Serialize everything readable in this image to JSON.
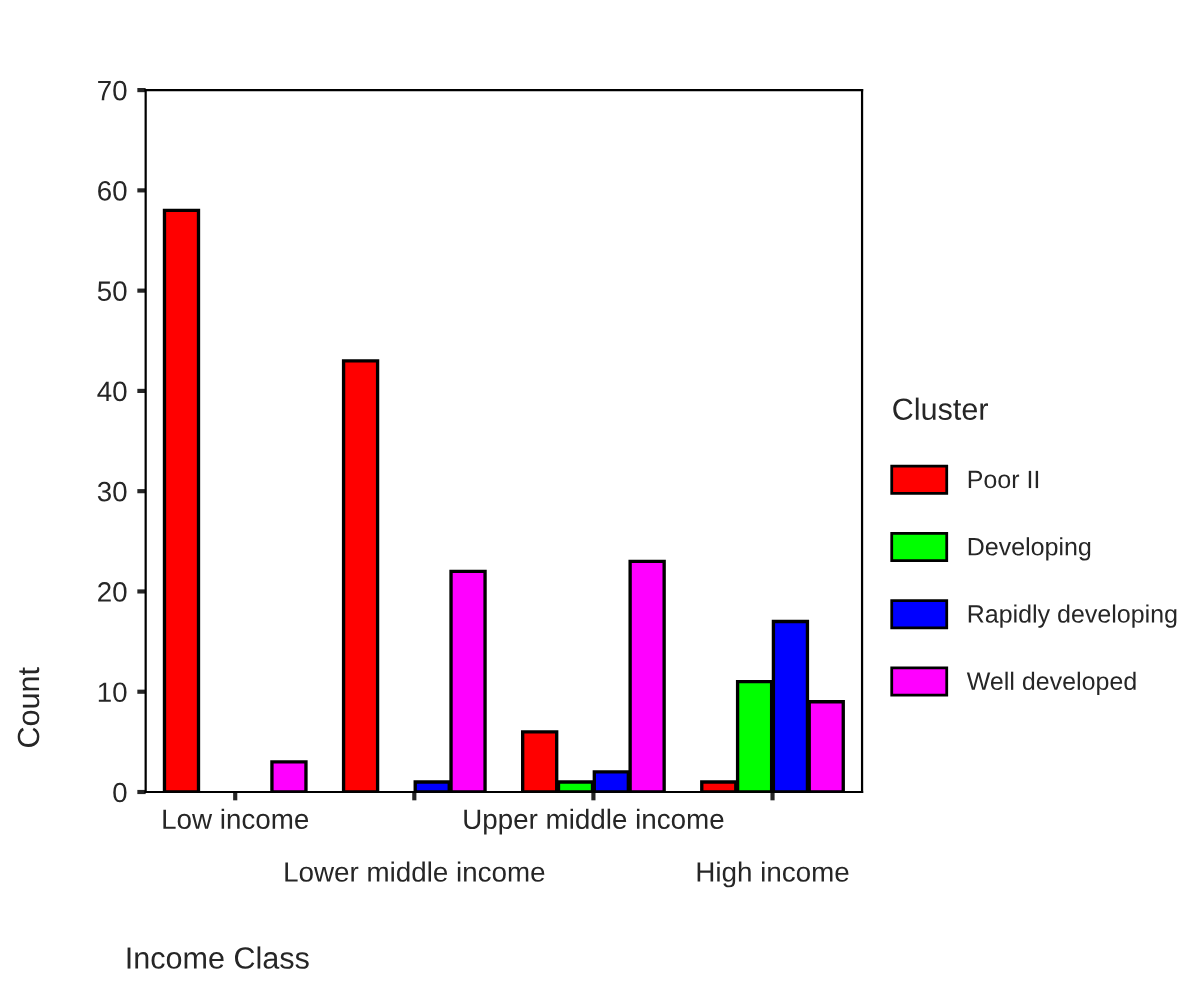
{
  "chart_data": {
    "type": "bar",
    "xlabel": "Income Class",
    "ylabel": "Count",
    "legend_title": "Cluster",
    "categories": [
      "Low income",
      "Lower middle income",
      "Upper middle income",
      "High income"
    ],
    "series": [
      {
        "name": "Poor II",
        "color": "#ff0000",
        "values": [
          58,
          43,
          6,
          1
        ]
      },
      {
        "name": "Developing",
        "color": "#00ff00",
        "values": [
          null,
          null,
          1,
          11
        ]
      },
      {
        "name": "Rapidly developing",
        "color": "#0000ff",
        "values": [
          null,
          1,
          2,
          17
        ]
      },
      {
        "name": "Well developed",
        "color": "#ff00ff",
        "values": [
          3,
          22,
          23,
          9
        ]
      }
    ],
    "ylim": [
      0,
      70
    ],
    "yticks": [
      0,
      10,
      20,
      30,
      40,
      50,
      60,
      70
    ],
    "grid": false,
    "legend": "right"
  }
}
